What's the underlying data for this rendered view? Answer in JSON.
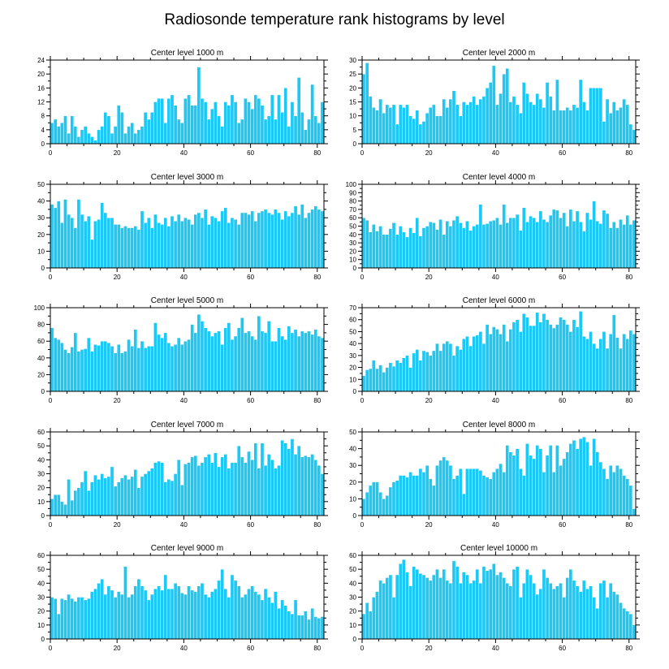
{
  "figure_title": "Radiosonde temperature rank histograms by level",
  "colors": {
    "bar": "#1ec8f4",
    "frame": "#000000",
    "background": "#ffffff"
  },
  "chart_data": [
    {
      "type": "bar",
      "title": "Center level 1000 m",
      "xlabel": "",
      "ylabel": "",
      "xlim": [
        0,
        82
      ],
      "ylim": [
        0,
        24
      ],
      "xticks": [
        0,
        20,
        40,
        60,
        80
      ],
      "yticks": [
        0,
        4,
        8,
        12,
        16,
        20,
        24
      ],
      "values": [
        6,
        7,
        5,
        6,
        8,
        3,
        8,
        5,
        2,
        4,
        5,
        3,
        2,
        1,
        4,
        5,
        9,
        8,
        3,
        5,
        11,
        9,
        3,
        5,
        6,
        3,
        4,
        5,
        9,
        7,
        9,
        12,
        13,
        13,
        6,
        13,
        14,
        11,
        7,
        6,
        13,
        14,
        11,
        11,
        22,
        13,
        12,
        7,
        10,
        12,
        8,
        5,
        12,
        11,
        14,
        12,
        6,
        7,
        13,
        12,
        10,
        14,
        13,
        11,
        7,
        8,
        14,
        7,
        14,
        9,
        16,
        5,
        12,
        8,
        19,
        9,
        4,
        7,
        17,
        8,
        6,
        12
      ]
    },
    {
      "type": "bar",
      "title": "Center level 2000 m",
      "xlabel": "",
      "ylabel": "",
      "xlim": [
        0,
        82
      ],
      "ylim": [
        0,
        30
      ],
      "xticks": [
        0,
        20,
        40,
        60,
        80
      ],
      "yticks": [
        0,
        5,
        10,
        15,
        20,
        25,
        30
      ],
      "values": [
        25,
        29,
        17,
        13,
        12,
        16,
        11,
        14,
        13,
        14,
        7,
        14,
        13,
        14,
        10,
        9,
        12,
        7,
        8,
        11,
        13,
        14,
        10,
        10,
        16,
        13,
        16,
        19,
        14,
        10,
        15,
        14,
        15,
        17,
        14,
        16,
        17,
        20,
        22,
        28,
        14,
        18,
        25,
        27,
        15,
        17,
        14,
        11,
        22,
        18,
        15,
        14,
        18,
        16,
        13,
        22,
        17,
        12,
        23,
        12,
        12,
        13,
        12,
        14,
        13,
        23,
        15,
        12,
        20,
        20,
        20,
        20,
        8,
        16,
        11,
        15,
        12,
        13,
        16,
        14,
        7,
        5
      ]
    },
    {
      "type": "bar",
      "title": "Center level 3000 m",
      "xlabel": "",
      "ylabel": "",
      "xlim": [
        0,
        82
      ],
      "ylim": [
        0,
        50
      ],
      "xticks": [
        0,
        20,
        40,
        60,
        80
      ],
      "yticks": [
        0,
        10,
        20,
        30,
        40,
        50
      ],
      "values": [
        38,
        36,
        40,
        27,
        41,
        32,
        30,
        24,
        41,
        32,
        28,
        31,
        17,
        28,
        29,
        39,
        33,
        30,
        30,
        26,
        26,
        24,
        25,
        24,
        24,
        25,
        23,
        34,
        27,
        30,
        24,
        32,
        27,
        26,
        30,
        25,
        31,
        28,
        32,
        28,
        30,
        29,
        26,
        32,
        33,
        30,
        35,
        26,
        31,
        30,
        28,
        34,
        36,
        27,
        30,
        29,
        26,
        33,
        33,
        32,
        34,
        28,
        33,
        34,
        35,
        33,
        32,
        35,
        33,
        29,
        34,
        31,
        33,
        37,
        32,
        38,
        30,
        33,
        35,
        37,
        35,
        34
      ]
    },
    {
      "type": "bar",
      "title": "Center level 4000 m",
      "xlabel": "",
      "ylabel": "",
      "xlim": [
        0,
        82
      ],
      "ylim": [
        0,
        100
      ],
      "xticks": [
        0,
        20,
        40,
        60,
        80
      ],
      "yticks": [
        0,
        10,
        20,
        30,
        40,
        50,
        60,
        70,
        80,
        90,
        100
      ],
      "values": [
        60,
        57,
        43,
        52,
        44,
        50,
        40,
        40,
        47,
        54,
        40,
        50,
        43,
        37,
        48,
        42,
        60,
        38,
        48,
        50,
        55,
        54,
        46,
        58,
        40,
        56,
        50,
        57,
        62,
        54,
        48,
        56,
        45,
        50,
        52,
        76,
        52,
        53,
        56,
        57,
        60,
        52,
        76,
        54,
        60,
        60,
        64,
        45,
        72,
        55,
        62,
        60,
        55,
        68,
        58,
        55,
        63,
        70,
        69,
        60,
        66,
        50,
        70,
        56,
        68,
        55,
        44,
        66,
        58,
        80,
        56,
        53,
        69,
        65,
        48,
        55,
        48,
        58,
        52,
        63,
        52,
        57
      ]
    },
    {
      "type": "bar",
      "title": "Center level 5000 m",
      "xlabel": "",
      "ylabel": "",
      "xlim": [
        0,
        82
      ],
      "ylim": [
        0,
        100
      ],
      "xticks": [
        0,
        20,
        40,
        60,
        80
      ],
      "yticks": [
        0,
        20,
        40,
        60,
        80,
        100
      ],
      "values": [
        76,
        64,
        62,
        58,
        50,
        46,
        53,
        70,
        48,
        50,
        51,
        64,
        48,
        56,
        55,
        60,
        60,
        58,
        54,
        46,
        56,
        46,
        48,
        62,
        54,
        74,
        52,
        60,
        52,
        54,
        54,
        82,
        68,
        64,
        70,
        58,
        54,
        56,
        64,
        56,
        60,
        62,
        80,
        70,
        92,
        84,
        76,
        72,
        66,
        70,
        72,
        56,
        76,
        82,
        62,
        66,
        76,
        88,
        70,
        72,
        66,
        62,
        90,
        72,
        70,
        84,
        60,
        60,
        76,
        66,
        62,
        78,
        70,
        74,
        66,
        72,
        70,
        72,
        68,
        74,
        66,
        64
      ]
    },
    {
      "type": "bar",
      "title": "Center level 6000 m",
      "xlabel": "",
      "ylabel": "",
      "xlim": [
        0,
        82
      ],
      "ylim": [
        0,
        70
      ],
      "xticks": [
        0,
        20,
        40,
        60,
        80
      ],
      "yticks": [
        0,
        10,
        20,
        30,
        40,
        50,
        60,
        70
      ],
      "values": [
        13,
        18,
        19,
        26,
        19,
        22,
        16,
        20,
        24,
        21,
        26,
        24,
        28,
        30,
        20,
        32,
        35,
        26,
        34,
        33,
        30,
        34,
        40,
        34,
        40,
        42,
        40,
        30,
        38,
        35,
        44,
        46,
        38,
        46,
        47,
        50,
        40,
        56,
        48,
        54,
        52,
        48,
        56,
        42,
        52,
        58,
        60,
        50,
        65,
        62,
        55,
        55,
        66,
        58,
        65,
        60,
        56,
        53,
        56,
        62,
        60,
        56,
        50,
        60,
        54,
        67,
        46,
        44,
        50,
        40,
        36,
        44,
        50,
        36,
        48,
        64,
        45,
        36,
        48,
        44,
        51,
        48
      ]
    },
    {
      "type": "bar",
      "title": "Center level 7000 m",
      "xlabel": "",
      "ylabel": "",
      "xlim": [
        0,
        82
      ],
      "ylim": [
        0,
        60
      ],
      "xticks": [
        0,
        20,
        40,
        60,
        80
      ],
      "yticks": [
        0,
        10,
        20,
        30,
        40,
        50,
        60
      ],
      "values": [
        12,
        15,
        15,
        10,
        8,
        26,
        11,
        18,
        20,
        24,
        32,
        18,
        24,
        29,
        26,
        30,
        27,
        28,
        35,
        21,
        24,
        27,
        29,
        26,
        28,
        33,
        20,
        28,
        30,
        32,
        34,
        38,
        39,
        38,
        24,
        26,
        25,
        30,
        40,
        22,
        37,
        38,
        42,
        43,
        36,
        38,
        42,
        44,
        38,
        45,
        35,
        42,
        44,
        34,
        38,
        38,
        50,
        42,
        38,
        46,
        40,
        52,
        34,
        52,
        36,
        44,
        40,
        34,
        36,
        54,
        52,
        48,
        55,
        44,
        50,
        42,
        43,
        42,
        44,
        40,
        36,
        30
      ]
    },
    {
      "type": "bar",
      "title": "Center level 8000 m",
      "xlabel": "",
      "ylabel": "",
      "xlim": [
        0,
        82
      ],
      "ylim": [
        0,
        50
      ],
      "xticks": [
        0,
        20,
        40,
        60,
        80
      ],
      "yticks": [
        0,
        10,
        20,
        30,
        40,
        50
      ],
      "values": [
        10,
        14,
        18,
        20,
        20,
        14,
        10,
        12,
        17,
        20,
        21,
        24,
        24,
        23,
        26,
        24,
        24,
        28,
        26,
        30,
        22,
        18,
        30,
        33,
        35,
        33,
        30,
        22,
        24,
        28,
        13,
        28,
        28,
        28,
        28,
        27,
        24,
        23,
        22,
        26,
        28,
        31,
        26,
        42,
        38,
        36,
        40,
        28,
        24,
        43,
        36,
        34,
        42,
        40,
        26,
        36,
        42,
        26,
        42,
        30,
        34,
        38,
        43,
        45,
        40,
        46,
        47,
        44,
        30,
        46,
        38,
        32,
        28,
        22,
        30,
        26,
        30,
        28,
        24,
        22,
        18,
        4
      ]
    },
    {
      "type": "bar",
      "title": "Center level 9000 m",
      "xlabel": "",
      "ylabel": "",
      "xlim": [
        0,
        82
      ],
      "ylim": [
        0,
        60
      ],
      "xticks": [
        0,
        20,
        40,
        60,
        80
      ],
      "yticks": [
        0,
        10,
        20,
        30,
        40,
        50,
        60
      ],
      "values": [
        30,
        29,
        18,
        29,
        28,
        32,
        29,
        27,
        30,
        30,
        28,
        29,
        34,
        36,
        40,
        43,
        32,
        38,
        35,
        30,
        34,
        32,
        52,
        30,
        32,
        38,
        43,
        38,
        35,
        28,
        32,
        36,
        38,
        35,
        46,
        36,
        36,
        40,
        38,
        33,
        32,
        38,
        35,
        34,
        38,
        40,
        32,
        30,
        34,
        36,
        42,
        50,
        36,
        30,
        46,
        42,
        38,
        30,
        32,
        36,
        38,
        34,
        32,
        28,
        36,
        30,
        26,
        34,
        22,
        28,
        24,
        20,
        18,
        28,
        17,
        17,
        20,
        14,
        22,
        16,
        15,
        16
      ]
    },
    {
      "type": "bar",
      "title": "Center level 10000 m",
      "xlabel": "",
      "ylabel": "",
      "xlim": [
        0,
        82
      ],
      "ylim": [
        0,
        60
      ],
      "xticks": [
        0,
        20,
        40,
        60,
        80
      ],
      "yticks": [
        0,
        10,
        20,
        30,
        40,
        50,
        60
      ],
      "values": [
        18,
        26,
        20,
        30,
        34,
        42,
        40,
        44,
        46,
        30,
        46,
        54,
        57,
        48,
        38,
        52,
        50,
        47,
        46,
        44,
        42,
        46,
        50,
        44,
        50,
        42,
        40,
        56,
        52,
        40,
        48,
        46,
        40,
        42,
        50,
        40,
        52,
        49,
        50,
        54,
        46,
        48,
        44,
        40,
        38,
        50,
        52,
        30,
        40,
        50,
        46,
        40,
        32,
        36,
        50,
        44,
        40,
        36,
        38,
        40,
        30,
        44,
        50,
        42,
        38,
        34,
        42,
        36,
        38,
        30,
        22,
        40,
        42,
        30,
        40,
        34,
        32,
        26,
        22,
        20,
        18,
        10
      ]
    }
  ]
}
